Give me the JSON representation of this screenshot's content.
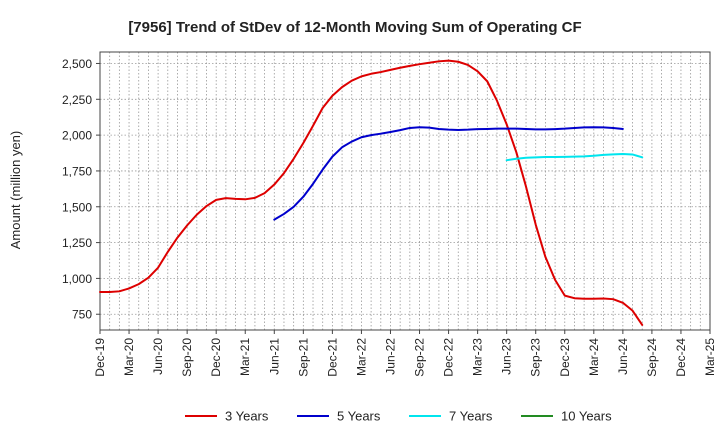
{
  "chart_data": {
    "type": "line",
    "title": "[7956]  Trend of StDev of 12-Month Moving Sum of Operating CF",
    "xlabel": "",
    "ylabel": "Amount (million yen)",
    "x_tick_labels": [
      "Dec-19",
      "Mar-20",
      "Jun-20",
      "Sep-20",
      "Dec-20",
      "Mar-21",
      "Jun-21",
      "Sep-21",
      "Dec-21",
      "Mar-22",
      "Jun-22",
      "Sep-22",
      "Dec-22",
      "Mar-23",
      "Jun-23",
      "Sep-23",
      "Dec-23",
      "Mar-24",
      "Jun-24",
      "Sep-24",
      "Dec-24",
      "Mar-25"
    ],
    "y_ticks": [
      750,
      1000,
      1250,
      1500,
      1750,
      2000,
      2250,
      2500
    ],
    "y_tick_labels": [
      "750",
      "1,000",
      "1,250",
      "1,500",
      "1,750",
      "2,000",
      "2,250",
      "2,500"
    ],
    "ylim": [
      640,
      2580
    ],
    "grid": true,
    "legend_position": "bottom",
    "series": [
      {
        "name": "3 Years",
        "color": "#dd0000",
        "start_index": 0,
        "values": [
          905,
          905,
          910,
          930,
          960,
          1005,
          1075,
          1185,
          1285,
          1370,
          1445,
          1505,
          1548,
          1560,
          1555,
          1552,
          1562,
          1595,
          1655,
          1735,
          1835,
          1945,
          2065,
          2190,
          2275,
          2335,
          2380,
          2410,
          2428,
          2440,
          2455,
          2470,
          2483,
          2495,
          2505,
          2515,
          2520,
          2512,
          2490,
          2445,
          2375,
          2240,
          2075,
          1880,
          1640,
          1375,
          1150,
          990,
          880,
          862,
          858,
          858,
          860,
          855,
          830,
          775,
          675
        ]
      },
      {
        "name": "5 Years",
        "color": "#0000cc",
        "start_index": 18,
        "values": [
          1410,
          1450,
          1500,
          1570,
          1660,
          1760,
          1850,
          1915,
          1955,
          1985,
          2000,
          2010,
          2022,
          2035,
          2050,
          2055,
          2052,
          2043,
          2038,
          2036,
          2038,
          2042,
          2043,
          2045,
          2045,
          2045,
          2043,
          2040,
          2040,
          2042,
          2045,
          2050,
          2054,
          2055,
          2054,
          2050,
          2043
        ]
      },
      {
        "name": "7 Years",
        "color": "#00e5ee",
        "start_index": 42,
        "values": [
          1825,
          1835,
          1842,
          1845,
          1847,
          1847,
          1848,
          1850,
          1852,
          1856,
          1862,
          1866,
          1868,
          1865,
          1845
        ]
      },
      {
        "name": "10 Years",
        "color": "#228b22",
        "start_index": 0,
        "values": []
      }
    ]
  }
}
